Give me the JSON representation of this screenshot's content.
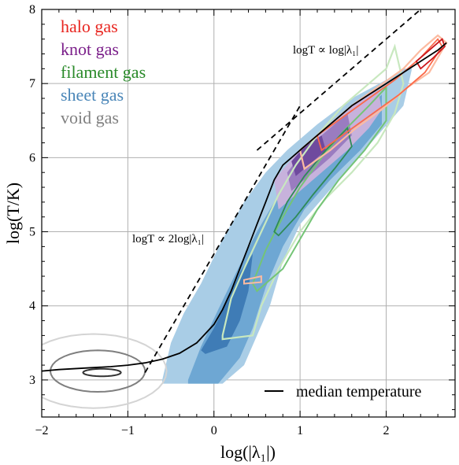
{
  "chart_data": {
    "type": "contour",
    "xlabel": "log(|λ₁|)",
    "ylabel": "log(T/K)",
    "xlim": [
      -2,
      2.8
    ],
    "ylim": [
      2.5,
      8
    ],
    "xticks": [
      -2,
      -1,
      0,
      1,
      2
    ],
    "yticks": [
      3,
      4,
      5,
      6,
      7,
      8
    ],
    "xtick_labels": [
      "−2",
      "−1",
      "0",
      "1",
      "2"
    ],
    "ytick_labels": [
      "3",
      "4",
      "5",
      "6",
      "7",
      "8"
    ],
    "grid": true,
    "legend_placement": "top-left",
    "series": [
      {
        "name": "halo gas",
        "color": "#e8251f",
        "style": "contour lines"
      },
      {
        "name": "knot gas",
        "color": "#7b1f8a",
        "style": "filled contours"
      },
      {
        "name": "filament gas",
        "color": "#2a8a2a",
        "style": "contour lines"
      },
      {
        "name": "sheet gas",
        "color": "#4a86b8",
        "style": "filled contours"
      },
      {
        "name": "void gas",
        "color": "#808080",
        "style": "contour lines"
      }
    ],
    "median_temperature": {
      "label": "median  temperature",
      "x": [
        -2.0,
        -1.8,
        -1.5,
        -1.2,
        -1.0,
        -0.8,
        -0.6,
        -0.4,
        -0.2,
        0.0,
        0.1,
        0.2,
        0.3,
        0.4,
        0.5,
        0.6,
        0.7,
        0.8,
        0.9,
        1.0,
        1.2,
        1.4,
        1.6,
        1.8,
        2.0,
        2.2,
        2.4,
        2.6,
        2.7
      ],
      "y": [
        3.12,
        3.14,
        3.16,
        3.18,
        3.2,
        3.23,
        3.28,
        3.36,
        3.5,
        3.75,
        3.95,
        4.2,
        4.5,
        4.8,
        5.1,
        5.4,
        5.7,
        5.9,
        6.0,
        6.1,
        6.3,
        6.5,
        6.7,
        6.85,
        7.0,
        7.15,
        7.3,
        7.45,
        7.55
      ]
    },
    "reference_lines": [
      {
        "label": "logT ∝ 2log|λ₁|",
        "x": [
          -0.8,
          1.0
        ],
        "y": [
          3.1,
          6.7
        ]
      },
      {
        "label": "logT ∝ log|λ₁|",
        "x": [
          0.5,
          2.4
        ],
        "y": [
          6.1,
          8.0
        ]
      }
    ]
  }
}
